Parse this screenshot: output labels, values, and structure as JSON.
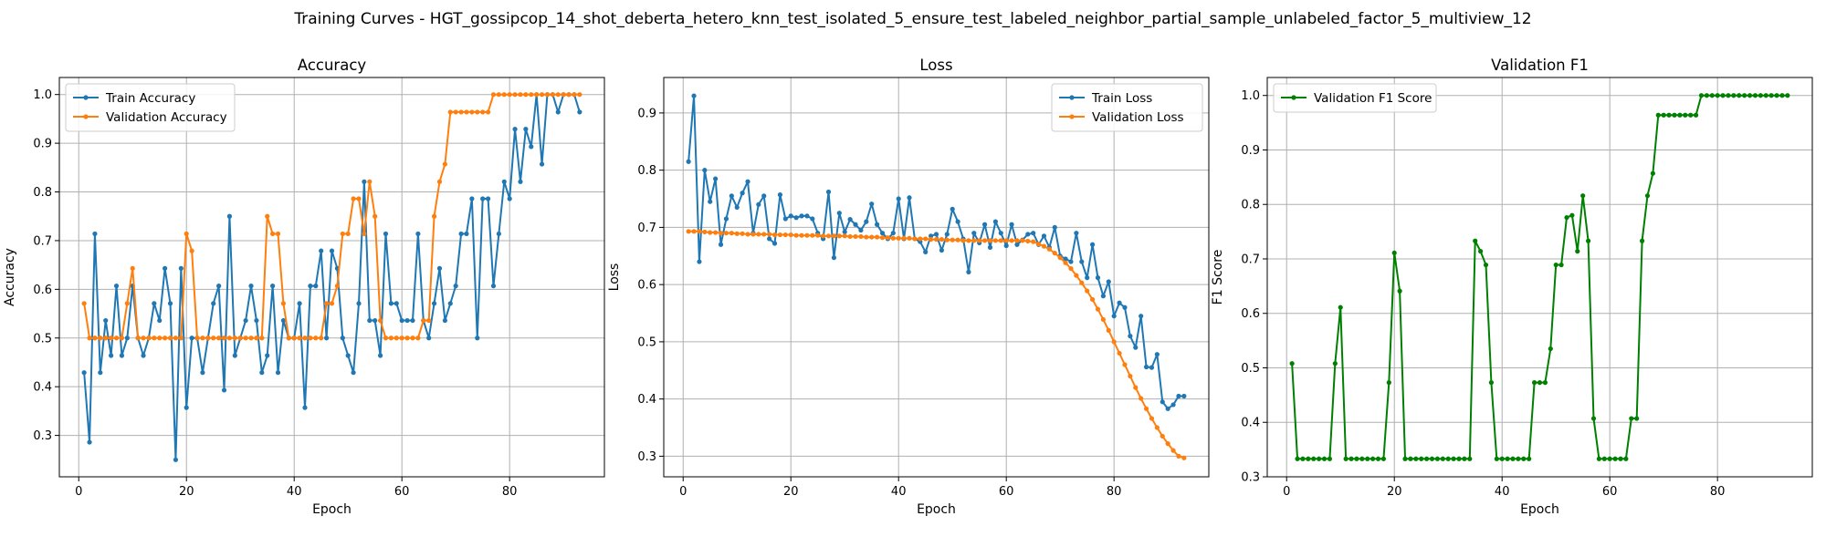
{
  "figure": {
    "title": "Training Curves - HGT_gossipcop_14_shot_deberta_hetero_knn_test_isolated_5_ensure_test_labeled_neighbor_partial_sample_unlabeled_factor_5_multiview_12"
  },
  "colors": {
    "blue": "#1f77b4",
    "orange": "#ff7f0e",
    "green": "#008000",
    "grid": "#b0b0b0"
  },
  "chart_data": [
    {
      "type": "line",
      "title": "Accuracy",
      "xlabel": "Epoch",
      "ylabel": "Accuracy",
      "xlim": [
        -3.6,
        97.6
      ],
      "ylim": [
        0.215,
        1.035
      ],
      "xticks": [
        0,
        20,
        40,
        60,
        80
      ],
      "yticks": [
        0.3,
        0.4,
        0.5,
        0.6,
        0.7,
        0.8,
        0.9,
        1.0
      ],
      "grid": true,
      "legend": "upper-left",
      "x": [
        1,
        2,
        3,
        4,
        5,
        6,
        7,
        8,
        9,
        10,
        11,
        12,
        13,
        14,
        15,
        16,
        17,
        18,
        19,
        20,
        21,
        22,
        23,
        24,
        25,
        26,
        27,
        28,
        29,
        30,
        31,
        32,
        33,
        34,
        35,
        36,
        37,
        38,
        39,
        40,
        41,
        42,
        43,
        44,
        45,
        46,
        47,
        48,
        49,
        50,
        51,
        52,
        53,
        54,
        55,
        56,
        57,
        58,
        59,
        60,
        61,
        62,
        63,
        64,
        65,
        66,
        67,
        68,
        69,
        70,
        71,
        72,
        73,
        74,
        75,
        76,
        77,
        78,
        79,
        80,
        81,
        82,
        83,
        84,
        85,
        86,
        87,
        88,
        89,
        90,
        91,
        92,
        93
      ],
      "series": [
        {
          "name": "Train Accuracy",
          "color": "#1f77b4",
          "values": [
            0.429,
            0.286,
            0.714,
            0.429,
            0.536,
            0.464,
            0.607,
            0.464,
            0.5,
            0.607,
            0.5,
            0.464,
            0.5,
            0.571,
            0.536,
            0.643,
            0.571,
            0.25,
            0.643,
            0.357,
            0.5,
            0.5,
            0.429,
            0.5,
            0.571,
            0.607,
            0.393,
            0.75,
            0.464,
            0.5,
            0.536,
            0.607,
            0.536,
            0.429,
            0.464,
            0.607,
            0.429,
            0.536,
            0.5,
            0.5,
            0.571,
            0.357,
            0.607,
            0.607,
            0.679,
            0.5,
            0.679,
            0.643,
            0.5,
            0.464,
            0.429,
            0.571,
            0.821,
            0.536,
            0.536,
            0.464,
            0.714,
            0.571,
            0.571,
            0.536,
            0.536,
            0.536,
            0.714,
            0.536,
            0.5,
            0.571,
            0.643,
            0.536,
            0.571,
            0.607,
            0.714,
            0.714,
            0.786,
            0.5,
            0.786,
            0.786,
            0.607,
            0.714,
            0.821,
            0.786,
            0.929,
            0.821,
            0.929,
            0.893,
            1.0,
            0.857,
            1.0,
            1.0,
            0.964,
            1.0,
            1.0,
            1.0,
            0.964
          ]
        },
        {
          "name": "Validation Accuracy",
          "color": "#ff7f0e",
          "values": [
            0.571,
            0.5,
            0.5,
            0.5,
            0.5,
            0.5,
            0.5,
            0.5,
            0.571,
            0.643,
            0.5,
            0.5,
            0.5,
            0.5,
            0.5,
            0.5,
            0.5,
            0.5,
            0.5,
            0.714,
            0.679,
            0.5,
            0.5,
            0.5,
            0.5,
            0.5,
            0.5,
            0.5,
            0.5,
            0.5,
            0.5,
            0.5,
            0.5,
            0.5,
            0.75,
            0.714,
            0.714,
            0.571,
            0.5,
            0.5,
            0.5,
            0.5,
            0.5,
            0.5,
            0.5,
            0.571,
            0.571,
            0.607,
            0.714,
            0.714,
            0.786,
            0.786,
            0.714,
            0.821,
            0.75,
            0.536,
            0.5,
            0.5,
            0.5,
            0.5,
            0.5,
            0.5,
            0.5,
            0.536,
            0.536,
            0.75,
            0.821,
            0.857,
            0.964,
            0.964,
            0.964,
            0.964,
            0.964,
            0.964,
            0.964,
            0.964,
            1.0,
            1.0,
            1.0,
            1.0,
            1.0,
            1.0,
            1.0,
            1.0,
            1.0,
            1.0,
            1.0,
            1.0,
            1.0,
            1.0,
            1.0,
            1.0,
            1.0
          ]
        }
      ]
    },
    {
      "type": "line",
      "title": "Loss",
      "xlabel": "Epoch",
      "ylabel": "Loss",
      "xlim": [
        -3.6,
        97.6
      ],
      "ylim": [
        0.264,
        0.962
      ],
      "xticks": [
        0,
        20,
        40,
        60,
        80
      ],
      "yticks": [
        0.3,
        0.4,
        0.5,
        0.6,
        0.7,
        0.8,
        0.9
      ],
      "grid": true,
      "legend": "upper-right",
      "x": [
        1,
        2,
        3,
        4,
        5,
        6,
        7,
        8,
        9,
        10,
        11,
        12,
        13,
        14,
        15,
        16,
        17,
        18,
        19,
        20,
        21,
        22,
        23,
        24,
        25,
        26,
        27,
        28,
        29,
        30,
        31,
        32,
        33,
        34,
        35,
        36,
        37,
        38,
        39,
        40,
        41,
        42,
        43,
        44,
        45,
        46,
        47,
        48,
        49,
        50,
        51,
        52,
        53,
        54,
        55,
        56,
        57,
        58,
        59,
        60,
        61,
        62,
        63,
        64,
        65,
        66,
        67,
        68,
        69,
        70,
        71,
        72,
        73,
        74,
        75,
        76,
        77,
        78,
        79,
        80,
        81,
        82,
        83,
        84,
        85,
        86,
        87,
        88,
        89,
        90,
        91,
        92,
        93
      ],
      "series": [
        {
          "name": "Train Loss",
          "color": "#1f77b4",
          "values": [
            0.815,
            0.93,
            0.64,
            0.8,
            0.745,
            0.785,
            0.67,
            0.715,
            0.755,
            0.735,
            0.76,
            0.78,
            0.69,
            0.74,
            0.755,
            0.68,
            0.672,
            0.757,
            0.715,
            0.72,
            0.717,
            0.72,
            0.72,
            0.715,
            0.69,
            0.68,
            0.762,
            0.647,
            0.725,
            0.692,
            0.714,
            0.705,
            0.695,
            0.71,
            0.741,
            0.705,
            0.69,
            0.68,
            0.69,
            0.75,
            0.68,
            0.752,
            0.68,
            0.675,
            0.657,
            0.685,
            0.688,
            0.66,
            0.688,
            0.732,
            0.71,
            0.68,
            0.622,
            0.69,
            0.673,
            0.705,
            0.665,
            0.71,
            0.69,
            0.668,
            0.705,
            0.67,
            0.678,
            0.688,
            0.69,
            0.67,
            0.685,
            0.665,
            0.7,
            0.65,
            0.645,
            0.64,
            0.69,
            0.64,
            0.612,
            0.67,
            0.612,
            0.58,
            0.605,
            0.545,
            0.568,
            0.56,
            0.51,
            0.49,
            0.545,
            0.456,
            0.455,
            0.478,
            0.395,
            0.383,
            0.39,
            0.405,
            0.405
          ]
        },
        {
          "name": "Validation Loss",
          "color": "#ff7f0e",
          "values": [
            0.693,
            0.693,
            0.693,
            0.692,
            0.691,
            0.691,
            0.69,
            0.69,
            0.69,
            0.689,
            0.689,
            0.688,
            0.688,
            0.688,
            0.688,
            0.688,
            0.687,
            0.687,
            0.687,
            0.687,
            0.686,
            0.686,
            0.686,
            0.686,
            0.686,
            0.685,
            0.685,
            0.685,
            0.685,
            0.685,
            0.684,
            0.684,
            0.684,
            0.683,
            0.683,
            0.683,
            0.682,
            0.682,
            0.681,
            0.681,
            0.681,
            0.681,
            0.68,
            0.68,
            0.68,
            0.679,
            0.679,
            0.679,
            0.678,
            0.678,
            0.678,
            0.677,
            0.677,
            0.677,
            0.677,
            0.677,
            0.677,
            0.677,
            0.677,
            0.677,
            0.677,
            0.677,
            0.677,
            0.676,
            0.675,
            0.671,
            0.667,
            0.662,
            0.655,
            0.647,
            0.638,
            0.628,
            0.616,
            0.603,
            0.589,
            0.574,
            0.557,
            0.539,
            0.52,
            0.5,
            0.48,
            0.46,
            0.44,
            0.42,
            0.401,
            0.383,
            0.366,
            0.35,
            0.335,
            0.322,
            0.31,
            0.3,
            0.297
          ]
        }
      ]
    },
    {
      "type": "line",
      "title": "Validation F1",
      "xlabel": "Epoch",
      "ylabel": "F1 Score",
      "xlim": [
        -3.6,
        97.6
      ],
      "ylim": [
        0.3,
        1.033
      ],
      "xticks": [
        0,
        20,
        40,
        60,
        80
      ],
      "yticks": [
        0.3,
        0.4,
        0.5,
        0.6,
        0.7,
        0.8,
        0.9,
        1.0
      ],
      "grid": true,
      "legend": "upper-left",
      "x": [
        1,
        2,
        3,
        4,
        5,
        6,
        7,
        8,
        9,
        10,
        11,
        12,
        13,
        14,
        15,
        16,
        17,
        18,
        19,
        20,
        21,
        22,
        23,
        24,
        25,
        26,
        27,
        28,
        29,
        30,
        31,
        32,
        33,
        34,
        35,
        36,
        37,
        38,
        39,
        40,
        41,
        42,
        43,
        44,
        45,
        46,
        47,
        48,
        49,
        50,
        51,
        52,
        53,
        54,
        55,
        56,
        57,
        58,
        59,
        60,
        61,
        62,
        63,
        64,
        65,
        66,
        67,
        68,
        69,
        70,
        71,
        72,
        73,
        74,
        75,
        76,
        77,
        78,
        79,
        80,
        81,
        82,
        83,
        84,
        85,
        86,
        87,
        88,
        89,
        90,
        91,
        92,
        93
      ],
      "series": [
        {
          "name": "Validation F1 Score",
          "color": "#008000",
          "values": [
            0.508,
            0.333,
            0.333,
            0.333,
            0.333,
            0.333,
            0.333,
            0.333,
            0.508,
            0.611,
            0.333,
            0.333,
            0.333,
            0.333,
            0.333,
            0.333,
            0.333,
            0.333,
            0.473,
            0.711,
            0.641,
            0.333,
            0.333,
            0.333,
            0.333,
            0.333,
            0.333,
            0.333,
            0.333,
            0.333,
            0.333,
            0.333,
            0.333,
            0.333,
            0.733,
            0.714,
            0.689,
            0.473,
            0.333,
            0.333,
            0.333,
            0.333,
            0.333,
            0.333,
            0.333,
            0.473,
            0.473,
            0.473,
            0.535,
            0.689,
            0.689,
            0.776,
            0.78,
            0.714,
            0.816,
            0.733,
            0.407,
            0.333,
            0.333,
            0.333,
            0.333,
            0.333,
            0.333,
            0.407,
            0.407,
            0.733,
            0.816,
            0.857,
            0.964,
            0.964,
            0.964,
            0.964,
            0.964,
            0.964,
            0.964,
            0.964,
            1.0,
            1.0,
            1.0,
            1.0,
            1.0,
            1.0,
            1.0,
            1.0,
            1.0,
            1.0,
            1.0,
            1.0,
            1.0,
            1.0,
            1.0,
            1.0,
            1.0
          ]
        }
      ]
    }
  ]
}
